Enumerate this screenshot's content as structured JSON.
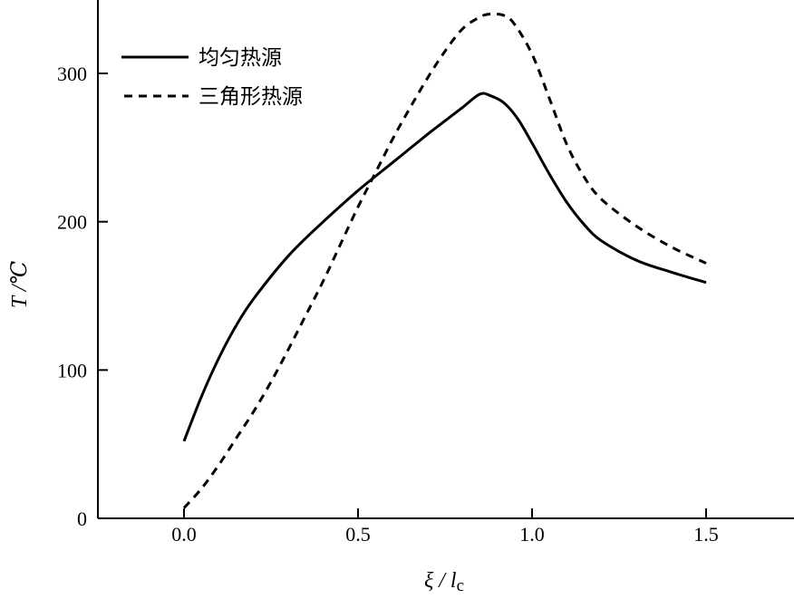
{
  "chart_data": {
    "type": "line",
    "title": "",
    "xlabel": "ξ / l",
    "xlabel_sub": "c",
    "ylabel": "T /℃",
    "xlim": [
      -0.25,
      1.75
    ],
    "ylim": [
      0,
      350
    ],
    "x_ticks": [
      0.0,
      0.5,
      1.0,
      1.5
    ],
    "x_tick_labels": [
      "0.0",
      "0.5",
      "1.0",
      "1.5"
    ],
    "y_ticks": [
      0,
      100,
      200,
      300
    ],
    "y_tick_labels": [
      "0",
      "100",
      "200",
      "300"
    ],
    "grid": false,
    "legend_position": "top-left",
    "series": [
      {
        "name": "均匀热源",
        "style": "solid",
        "color": "#000000",
        "x": [
          0.0,
          0.05,
          0.1,
          0.15,
          0.2,
          0.3,
          0.4,
          0.5,
          0.6,
          0.7,
          0.75,
          0.8,
          0.85,
          0.88,
          0.92,
          0.96,
          1.0,
          1.05,
          1.1,
          1.15,
          1.2,
          1.3,
          1.4,
          1.5
        ],
        "y": [
          52,
          82,
          108,
          130,
          148,
          177,
          200,
          221,
          240,
          259,
          268,
          277,
          286,
          285,
          280,
          269,
          253,
          232,
          213,
          198,
          187,
          174,
          166,
          159
        ]
      },
      {
        "name": "三角形热源",
        "style": "dashed",
        "color": "#000000",
        "x": [
          0.0,
          0.05,
          0.1,
          0.15,
          0.2,
          0.25,
          0.3,
          0.35,
          0.4,
          0.45,
          0.5,
          0.55,
          0.6,
          0.65,
          0.7,
          0.75,
          0.8,
          0.85,
          0.88,
          0.92,
          0.95,
          1.0,
          1.05,
          1.1,
          1.15,
          1.2,
          1.3,
          1.4,
          1.5
        ],
        "y": [
          7,
          20,
          36,
          54,
          72,
          92,
          114,
          137,
          160,
          185,
          210,
          233,
          256,
          277,
          297,
          315,
          330,
          338,
          340,
          339,
          333,
          313,
          283,
          252,
          230,
          215,
          197,
          183,
          172
        ]
      }
    ]
  }
}
